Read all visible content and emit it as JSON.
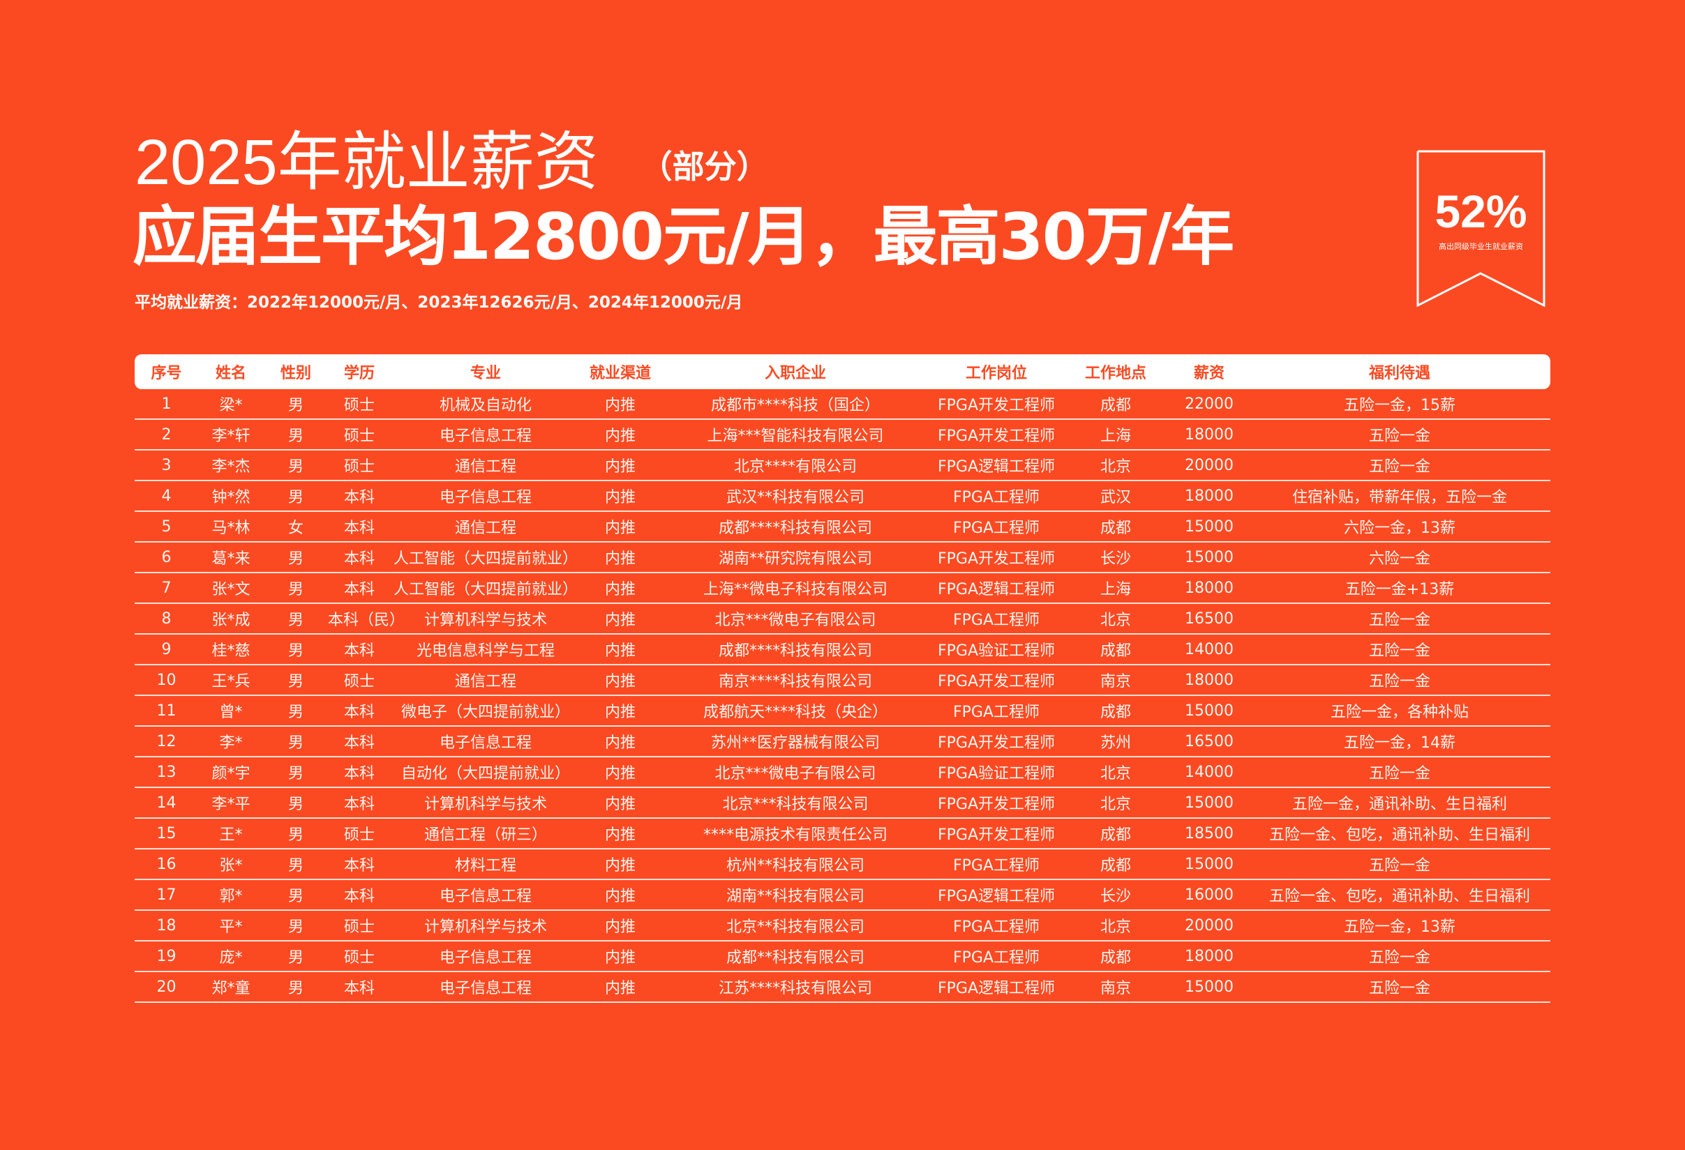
{
  "header": {
    "title": "2025年就业薪资",
    "title_note": "（部分）",
    "headline": "应届生平均12800元/月，最高30万/年",
    "subtitle": "平均就业薪资：2022年12000元/月、2023年12626元/月、2024年12000元/月"
  },
  "badge": {
    "value": "52%",
    "caption": "高出同级毕业生就业薪资"
  },
  "colors": {
    "background": "#fb4a22",
    "header_row": "#ffffff",
    "text": "#ffffff"
  },
  "table": {
    "columns": [
      "序号",
      "姓名",
      "性别",
      "学历",
      "专业",
      "就业渠道",
      "入职企业",
      "工作岗位",
      "工作地点",
      "薪资",
      "福利待遇"
    ],
    "rows": [
      [
        "1",
        "梁*",
        "男",
        "硕士",
        "机械及自动化",
        "内推",
        "成都市****科技（国企）",
        "FPGA开发工程师",
        "成都",
        "22000",
        "五险一金，15薪"
      ],
      [
        "2",
        "李*轩",
        "男",
        "硕士",
        "电子信息工程",
        "内推",
        "上海***智能科技有限公司",
        "FPGA开发工程师",
        "上海",
        "18000",
        "五险一金"
      ],
      [
        "3",
        "李*杰",
        "男",
        "硕士",
        "通信工程",
        "内推",
        "北京****有限公司",
        "FPGA逻辑工程师",
        "北京",
        "20000",
        "五险一金"
      ],
      [
        "4",
        "钟*然",
        "男",
        "本科",
        "电子信息工程",
        "内推",
        "武汉**科技有限公司",
        "FPGA工程师",
        "武汉",
        "18000",
        "住宿补贴，带薪年假，五险一金"
      ],
      [
        "5",
        "马*林",
        "女",
        "本科",
        "通信工程",
        "内推",
        "成都****科技有限公司",
        "FPGA工程师",
        "成都",
        "15000",
        "六险一金，13薪"
      ],
      [
        "6",
        "葛*来",
        "男",
        "本科",
        "人工智能（大四提前就业）",
        "内推",
        "湖南**研究院有限公司",
        "FPGA开发工程师",
        "长沙",
        "15000",
        "六险一金"
      ],
      [
        "7",
        "张*文",
        "男",
        "本科",
        "人工智能（大四提前就业）",
        "内推",
        "上海**微电子科技有限公司",
        "FPGA逻辑工程师",
        "上海",
        "18000",
        "五险一金+13薪"
      ],
      [
        "8",
        "张*成",
        "男",
        "本科（民）",
        "计算机科学与技术",
        "内推",
        "北京***微电子有限公司",
        "FPGA工程师",
        "北京",
        "16500",
        "五险一金"
      ],
      [
        "9",
        "桂*慈",
        "男",
        "本科",
        "光电信息科学与工程",
        "内推",
        "成都****科技有限公司",
        "FPGA验证工程师",
        "成都",
        "14000",
        "五险一金"
      ],
      [
        "10",
        "王*兵",
        "男",
        "硕士",
        "通信工程",
        "内推",
        "南京****科技有限公司",
        "FPGA开发工程师",
        "南京",
        "18000",
        "五险一金"
      ],
      [
        "11",
        "曾*",
        "男",
        "本科",
        "微电子（大四提前就业）",
        "内推",
        "成都航天****科技（央企）",
        "FPGA工程师",
        "成都",
        "15000",
        "五险一金，各种补贴"
      ],
      [
        "12",
        "李*",
        "男",
        "本科",
        "电子信息工程",
        "内推",
        "苏州**医疗器械有限公司",
        "FPGA开发工程师",
        "苏州",
        "16500",
        "五险一金，14薪"
      ],
      [
        "13",
        "颜*宇",
        "男",
        "本科",
        "自动化（大四提前就业）",
        "内推",
        "北京***微电子有限公司",
        "FPGA验证工程师",
        "北京",
        "14000",
        "五险一金"
      ],
      [
        "14",
        "李*平",
        "男",
        "本科",
        "计算机科学与技术",
        "内推",
        "北京***科技有限公司",
        "FPGA开发工程师",
        "北京",
        "15000",
        "五险一金，通讯补助、生日福利"
      ],
      [
        "15",
        "王*",
        "男",
        "硕士",
        "通信工程（研三）",
        "内推",
        "****电源技术有限责任公司",
        "FPGA开发工程师",
        "成都",
        "18500",
        "五险一金、包吃，通讯补助、生日福利"
      ],
      [
        "16",
        "张*",
        "男",
        "本科",
        "材料工程",
        "内推",
        "杭州**科技有限公司",
        "FPGA工程师",
        "成都",
        "15000",
        "五险一金"
      ],
      [
        "17",
        "郭*",
        "男",
        "本科",
        "电子信息工程",
        "内推",
        "湖南**科技有限公司",
        "FPGA逻辑工程师",
        "长沙",
        "16000",
        "五险一金、包吃，通讯补助、生日福利"
      ],
      [
        "18",
        "平*",
        "男",
        "硕士",
        "计算机科学与技术",
        "内推",
        "北京**科技有限公司",
        "FPGA工程师",
        "北京",
        "20000",
        "五险一金，13薪"
      ],
      [
        "19",
        "庞*",
        "男",
        "硕士",
        "电子信息工程",
        "内推",
        "成都**科技有限公司",
        "FPGA工程师",
        "成都",
        "18000",
        "五险一金"
      ],
      [
        "20",
        "郑*童",
        "男",
        "本科",
        "电子信息工程",
        "内推",
        "江苏****科技有限公司",
        "FPGA逻辑工程师",
        "南京",
        "15000",
        "五险一金"
      ]
    ]
  }
}
